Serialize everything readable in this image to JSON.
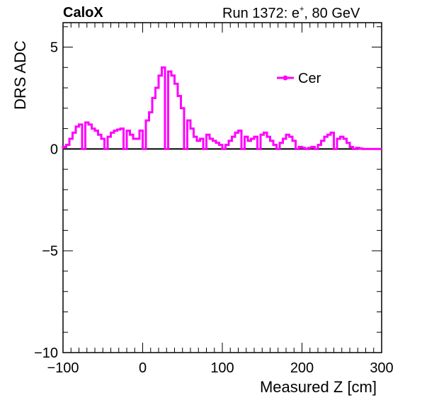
{
  "header": {
    "brand": "CaloX",
    "run_label": "Run 1372: e",
    "run_sup": "+",
    "run_suffix": ", 80 GeV"
  },
  "chart_data": {
    "type": "line",
    "title": "",
    "xlabel": "Measured Z [cm]",
    "ylabel": "DRS ADC",
    "xlim": [
      -100,
      300
    ],
    "ylim": [
      -10,
      6.2
    ],
    "x_ticks": [
      -100,
      0,
      100,
      200,
      300
    ],
    "x_tick_labels": [
      "−100",
      "0",
      "100",
      "200",
      "300"
    ],
    "y_ticks": [
      -10,
      -5,
      0,
      5
    ],
    "y_tick_labels": [
      "−10",
      "−5",
      "0",
      "5"
    ],
    "zero_line": true,
    "grid": false,
    "legend": {
      "position": "top-right",
      "entries": [
        "Cer"
      ]
    },
    "series": [
      {
        "name": "Cer",
        "color": "#ff00ff",
        "bin_edges": [
          -100,
          -96,
          -92,
          -88,
          -84,
          -80,
          -76,
          -72,
          -68,
          -64,
          -60,
          -56,
          -52,
          -48,
          -44,
          -40,
          -36,
          -32,
          -28,
          -24,
          -20,
          -16,
          -12,
          -8,
          -4,
          0,
          4,
          8,
          12,
          16,
          20,
          24,
          28,
          32,
          36,
          40,
          44,
          48,
          52,
          56,
          60,
          64,
          68,
          72,
          76,
          80,
          84,
          88,
          92,
          96,
          100,
          104,
          108,
          112,
          116,
          120,
          124,
          128,
          132,
          136,
          140,
          144,
          148,
          152,
          156,
          160,
          164,
          168,
          172,
          176,
          180,
          184,
          188,
          192,
          196,
          200,
          204,
          208,
          212,
          216,
          220,
          224,
          228,
          232,
          236,
          240,
          244,
          248,
          252,
          256,
          260,
          264,
          268,
          272,
          276,
          280,
          284,
          288,
          292,
          296,
          300
        ],
        "values": [
          0.1,
          0.2,
          0.5,
          0.8,
          1.1,
          1.2,
          0.0,
          1.3,
          1.2,
          1.0,
          0.9,
          0.7,
          0.5,
          0.0,
          0.6,
          0.8,
          0.9,
          0.95,
          1.0,
          0.0,
          0.9,
          0.7,
          0.5,
          0.5,
          0.9,
          0.0,
          1.4,
          1.8,
          2.5,
          3.0,
          3.6,
          4.0,
          0.0,
          3.8,
          3.6,
          3.2,
          2.6,
          2.0,
          0.0,
          1.4,
          1.0,
          0.6,
          0.4,
          0.5,
          0.0,
          0.7,
          0.5,
          0.4,
          0.3,
          0.2,
          0.0,
          0.2,
          0.4,
          0.6,
          0.8,
          0.9,
          0.0,
          0.6,
          0.4,
          0.5,
          0.6,
          0.0,
          0.7,
          0.8,
          0.6,
          0.4,
          0.2,
          0.0,
          0.3,
          0.5,
          0.7,
          0.6,
          0.4,
          0.0,
          0.1,
          0.05,
          0.0,
          0.05,
          0.1,
          0.0,
          0.2,
          0.4,
          0.6,
          0.7,
          0.8,
          0.0,
          0.5,
          0.6,
          0.5,
          0.3,
          0.1,
          0.0,
          0.05,
          0.02,
          0.0,
          0.0,
          0.0,
          0.0,
          0.0,
          0.0
        ]
      }
    ]
  }
}
